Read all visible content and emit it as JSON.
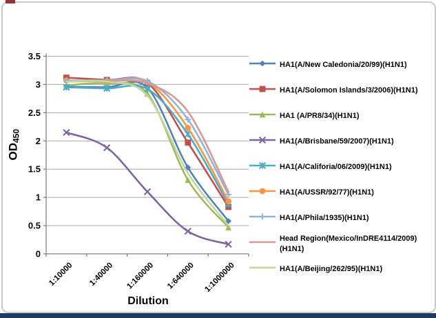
{
  "page": {
    "background": "#ffffff",
    "frame_border_color": "#c9c9c9",
    "bottom_bar_color": "#1f3864",
    "top_left_fragment_color": "#943634"
  },
  "chart_data": {
    "type": "line",
    "title": "",
    "xlabel": "Dilution",
    "ylabel": "OD450",
    "ylabel_base": "OD",
    "ylabel_sub": "450",
    "ylim": [
      0,
      3.5
    ],
    "ytick_step": 0.5,
    "yticks": [
      "0",
      "0.5",
      "1",
      "1.5",
      "2",
      "2.5",
      "3",
      "3.5"
    ],
    "grid": "horizontal-only",
    "gridline_color": "#a6a6a6",
    "axis_line_color": "#7f7f7f",
    "legend_position": "right",
    "smooth_lines": true,
    "categories": [
      "1:10000",
      "1:40000",
      "1:160000",
      "1:640000",
      "1:1000000"
    ],
    "series": [
      {
        "name": "HA1(A/New Caledonia/20/99)(H1N1)",
        "color": "#4F81BD",
        "marker": "diamond",
        "values": [
          2.96,
          2.95,
          2.94,
          1.53,
          0.58
        ]
      },
      {
        "name": "HA1(A/Solomon Islands/3/2006)(H1N1)",
        "color": "#C0504D",
        "marker": "square",
        "values": [
          3.12,
          3.08,
          3.03,
          1.97,
          0.83
        ]
      },
      {
        "name": "HA1 (A/PR8/34)(H1N1)",
        "color": "#9BBB59",
        "marker": "triangle",
        "values": [
          2.98,
          3.02,
          2.84,
          1.31,
          0.47
        ]
      },
      {
        "name": "HA1(A/Brisbane/59/2007)(H1N1)",
        "color": "#8064A2",
        "marker": "x",
        "values": [
          2.15,
          1.88,
          1.1,
          0.4,
          0.17
        ]
      },
      {
        "name": "HA1(A/Califoria/06/2009)(H1N1)",
        "color": "#4BACC6",
        "marker": "asterisk",
        "values": [
          2.95,
          2.93,
          2.92,
          2.12,
          0.88
        ]
      },
      {
        "name": "HA1(A/USSR/92/77)(H1N1)",
        "color": "#F79646",
        "marker": "circle",
        "values": [
          3.07,
          3.06,
          3.04,
          2.23,
          0.93
        ]
      },
      {
        "name": "HA1(A/Phila/1935)(H1N1)",
        "color": "#95B3D7",
        "marker": "plus",
        "values": [
          3.07,
          3.07,
          3.06,
          2.38,
          1.05
        ]
      },
      {
        "name": "Head Region(Mexico/InDRE4114/2009)(H1N1)",
        "color": "#D99694",
        "marker": "none",
        "values": [
          3.05,
          3.06,
          3.02,
          2.52,
          1.1
        ]
      },
      {
        "name": "HA1(A/Beijing/262/95)(H1N1)",
        "color": "#C3D69B",
        "marker": "none",
        "values": [
          3.05,
          3.05,
          2.8,
          1.43,
          0.5
        ]
      }
    ]
  }
}
